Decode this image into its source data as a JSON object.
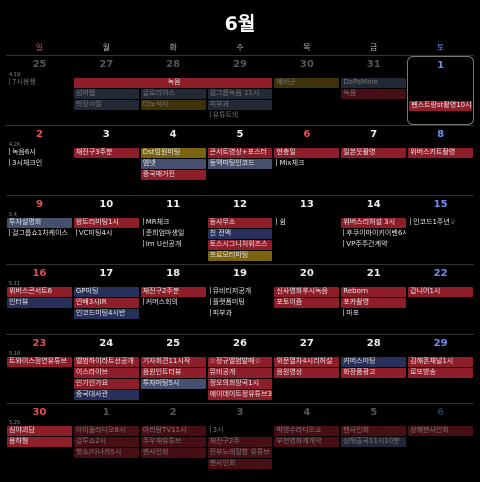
{
  "title": "6월",
  "weekdays": [
    "일",
    "월",
    "화",
    "수",
    "목",
    "금",
    "토"
  ],
  "weeks": [
    {
      "days": [
        {
          "num": "25",
          "lunar": "4.19",
          "muted": true,
          "events": [
            {
              "t": "7시용행",
              "c": "plain"
            }
          ]
        },
        {
          "num": "27",
          "muted": true,
          "events": [
            {
              "t": "",
              "c": "none"
            },
            {
              "t": "섬머웹",
              "c": "ltblue"
            },
            {
              "t": "학장시절",
              "c": "ltblue"
            }
          ]
        },
        {
          "num": "28",
          "muted": true,
          "events": [
            {
              "t": "",
              "c": "none"
            },
            {
              "t": "글로리어스",
              "c": "ltblue"
            },
            {
              "t": "더노식사",
              "c": "gold"
            }
          ]
        },
        {
          "num": "29",
          "muted": true,
          "events": [
            {
              "t": "S27앙도",
              "c": "navy"
            },
            {
              "t": "걸그룹녹음 11시",
              "c": "ltblue"
            },
            {
              "t": "피부과",
              "c": "ltblue"
            },
            {
              "t": "유튜트의",
              "c": "plain"
            }
          ]
        },
        {
          "num": "30",
          "muted": true,
          "events": [
            {
              "t": "예비군",
              "c": "gold"
            }
          ]
        },
        {
          "num": "31",
          "muted": true,
          "events": [
            {
              "t": "DoPaMine",
              "c": "ltblue"
            },
            {
              "t": "녹음",
              "c": "red"
            }
          ]
        },
        {
          "num": "1",
          "sat": true,
          "today": true,
          "events": [
            {
              "t": "",
              "c": "none"
            },
            {
              "t": "",
              "c": "none"
            },
            {
              "t": "펜스트랑st촬영10시",
              "c": "red"
            }
          ]
        }
      ],
      "spans": [
        {
          "t": "녹음",
          "c": "red",
          "from": 1,
          "to": 3,
          "row": 0
        }
      ]
    },
    {
      "days": [
        {
          "num": "2",
          "lunar": "4.26",
          "sun": true,
          "events": [
            {
              "t": "녹음6시",
              "c": "plain"
            },
            {
              "t": "3시체크인",
              "c": "plain"
            }
          ]
        },
        {
          "num": "3",
          "events": [
            {
              "t": "재진구3주분",
              "c": "red"
            }
          ]
        },
        {
          "num": "4",
          "events": [
            {
              "t": "Dst임원미팅",
              "c": "gold"
            },
            {
              "t": "엠넷",
              "c": "ltblue"
            },
            {
              "t": "중국매거진",
              "c": "red"
            }
          ]
        },
        {
          "num": "5",
          "events": [
            {
              "t": "콘서트영상+포스터",
              "c": "red"
            },
            {
              "t": "동맥미팅인코드",
              "c": "ltblue"
            }
          ]
        },
        {
          "num": "6",
          "red": true,
          "events": [
            {
              "t": "현충일",
              "c": "red"
            },
            {
              "t": "Mix체크",
              "c": "plain"
            }
          ]
        },
        {
          "num": "7",
          "events": [
            {
              "t": "일본웃촬영",
              "c": "red"
            }
          ]
        },
        {
          "num": "8",
          "sat": true,
          "events": [
            {
              "t": "위버스키트촬영",
              "c": "red"
            }
          ]
        }
      ],
      "spans": []
    },
    {
      "days": [
        {
          "num": "9",
          "lunar": "5.4",
          "sun": true,
          "events": [
            {
              "t": "투자설명회",
              "c": "ltblue"
            },
            {
              "t": "걸그룹쇼1차케이스",
              "c": "plain"
            }
          ]
        },
        {
          "num": "10",
          "events": [
            {
              "t": "왕트리미팅1시",
              "c": "red"
            },
            {
              "t": "VC미팅4시",
              "c": "plain"
            }
          ]
        },
        {
          "num": "11",
          "events": [
            {
              "t": "MR체크",
              "c": "plain"
            },
            {
              "t": "준희엄마생일",
              "c": "plain"
            },
            {
              "t": "Im U선공개",
              "c": "plain"
            }
          ]
        },
        {
          "num": "12",
          "events": [
            {
              "t": "동사무소",
              "c": "red"
            },
            {
              "t": "친 전액",
              "c": "navy"
            },
            {
              "t": "토스시그니처위즈스",
              "c": "red"
            },
            {
              "t": "프로모터미팅",
              "c": "gold"
            }
          ]
        },
        {
          "num": "13",
          "events": [
            {
              "t": "쉼",
              "c": "plain"
            }
          ]
        },
        {
          "num": "14",
          "events": [
            {
              "t": "위버스리허설 3시",
              "c": "red"
            },
            {
              "t": "후쿠이마이키이벤6시",
              "c": "plain"
            },
            {
              "t": "VP주주간계약",
              "c": "plain"
            }
          ]
        },
        {
          "num": "15",
          "sat": true,
          "events": [
            {
              "t": "인코드1주년♤",
              "c": "plain"
            }
          ]
        }
      ],
      "spans": []
    },
    {
      "days": [
        {
          "num": "16",
          "lunar": "5.11",
          "sun": true,
          "events": [
            {
              "t": "위버스콘서트6",
              "c": "red"
            },
            {
              "t": "인터뷰",
              "c": "navy"
            }
          ]
        },
        {
          "num": "17",
          "events": [
            {
              "t": "GP미팅",
              "c": "navy"
            },
            {
              "t": "인배3시IR",
              "c": "red"
            },
            {
              "t": "인코드미팅4시반",
              "c": "navy"
            }
          ]
        },
        {
          "num": "18",
          "events": [
            {
              "t": "재진구2주분",
              "c": "red"
            },
            {
              "t": "커머스회의",
              "c": "plain"
            }
          ]
        },
        {
          "num": "19",
          "events": [
            {
              "t": "뮤비티저공개",
              "c": "plain"
            },
            {
              "t": "플랫폼미팅",
              "c": "plain"
            },
            {
              "t": "피부과",
              "c": "plain"
            }
          ]
        },
        {
          "num": "20",
          "events": [
            {
              "t": "신사영화후시녹음",
              "c": "red"
            },
            {
              "t": "포토이즘",
              "c": "red"
            }
          ]
        },
        {
          "num": "21",
          "events": [
            {
              "t": "Reborn",
              "c": "red"
            },
            {
              "t": "포카촬영",
              "c": "red"
            },
            {
              "t": "마포",
              "c": "plain"
            }
          ]
        },
        {
          "num": "22",
          "sat": true,
          "events": [
            {
              "t": "갑니어1시",
              "c": "red"
            }
          ]
        }
      ],
      "spans": []
    },
    {
      "days": [
        {
          "num": "23",
          "lunar": "5.18",
          "sun": true,
          "events": [
            {
              "t": "트와이스정연유튜브",
              "c": "red"
            }
          ]
        },
        {
          "num": "24",
          "events": [
            {
              "t": "멜범하이라트선공개",
              "c": "red"
            },
            {
              "t": "이스라이브",
              "c": "red"
            },
            {
              "t": "인기인가요",
              "c": "red"
            },
            {
              "t": "중국대사관",
              "c": "navy"
            }
          ]
        },
        {
          "num": "25",
          "events": [
            {
              "t": "기자회견11시작",
              "c": "red"
            },
            {
              "t": "음원인트터뷰",
              "c": "red"
            },
            {
              "t": "투자미팅5시",
              "c": "ltblue"
            }
          ]
        },
        {
          "num": "26",
          "events": [
            {
              "t": "☆정규앨범발매☆",
              "c": "red"
            },
            {
              "t": "뮤비공개",
              "c": "red"
            },
            {
              "t": "정오의희망곡1시",
              "c": "red"
            },
            {
              "t": "에이데이트정유튜브3",
              "c": "red"
            }
          ]
        },
        {
          "num": "27",
          "events": [
            {
              "t": "위문열차4시리허설",
              "c": "red"
            },
            {
              "t": "음원영상",
              "c": "red"
            }
          ]
        },
        {
          "num": "28",
          "events": [
            {
              "t": "커머스미팅",
              "c": "navy"
            },
            {
              "t": "화장품광고",
              "c": "red"
            }
          ]
        },
        {
          "num": "29",
          "sat": true,
          "events": [
            {
              "t": "김해존채널1시",
              "c": "red"
            },
            {
              "t": "로또방송",
              "c": "red"
            }
          ]
        }
      ],
      "spans": []
    },
    {
      "days": [
        {
          "num": "30",
          "lunar": "5.25",
          "sun": true,
          "events": [
            {
              "t": "심야괴담",
              "c": "red"
            },
            {
              "t": "용하형",
              "c": "red"
            }
          ]
        },
        {
          "num": "1",
          "muted": true,
          "events": [
            {
              "t": "아이돌라디오8시",
              "c": "red"
            },
            {
              "t": "걸투쇼2시",
              "c": "red"
            },
            {
              "t": "핫쇼/다나카5시",
              "c": "red"
            }
          ]
        },
        {
          "num": "2",
          "muted": true,
          "events": [
            {
              "t": "아리랑TV11시",
              "c": "red"
            },
            {
              "t": "주우재유튜브",
              "c": "red"
            },
            {
              "t": "팬사인회",
              "c": "red"
            }
          ]
        },
        {
          "num": "3",
          "muted": true,
          "events": [
            {
              "t": "3시",
              "c": "plain"
            },
            {
              "t": "재진구2주",
              "c": "red"
            },
            {
              "t": "전부노래잘함 유튜브",
              "c": "red"
            },
            {
              "t": "팬사인회",
              "c": "red"
            }
          ]
        },
        {
          "num": "4",
          "muted": true,
          "events": [
            {
              "t": "박명수라디오쇼",
              "c": "red"
            },
            {
              "t": "부천영화제개막",
              "c": "red"
            }
          ]
        },
        {
          "num": "5",
          "muted": true,
          "events": [
            {
              "t": "팬사인회",
              "c": "red"
            },
            {
              "t": "상해출국11시10분",
              "c": "ltblue"
            }
          ]
        },
        {
          "num": "6",
          "muted": true,
          "sat": true,
          "events": [
            {
              "t": "상해팬사인회",
              "c": "red"
            }
          ]
        }
      ],
      "spans": []
    }
  ]
}
